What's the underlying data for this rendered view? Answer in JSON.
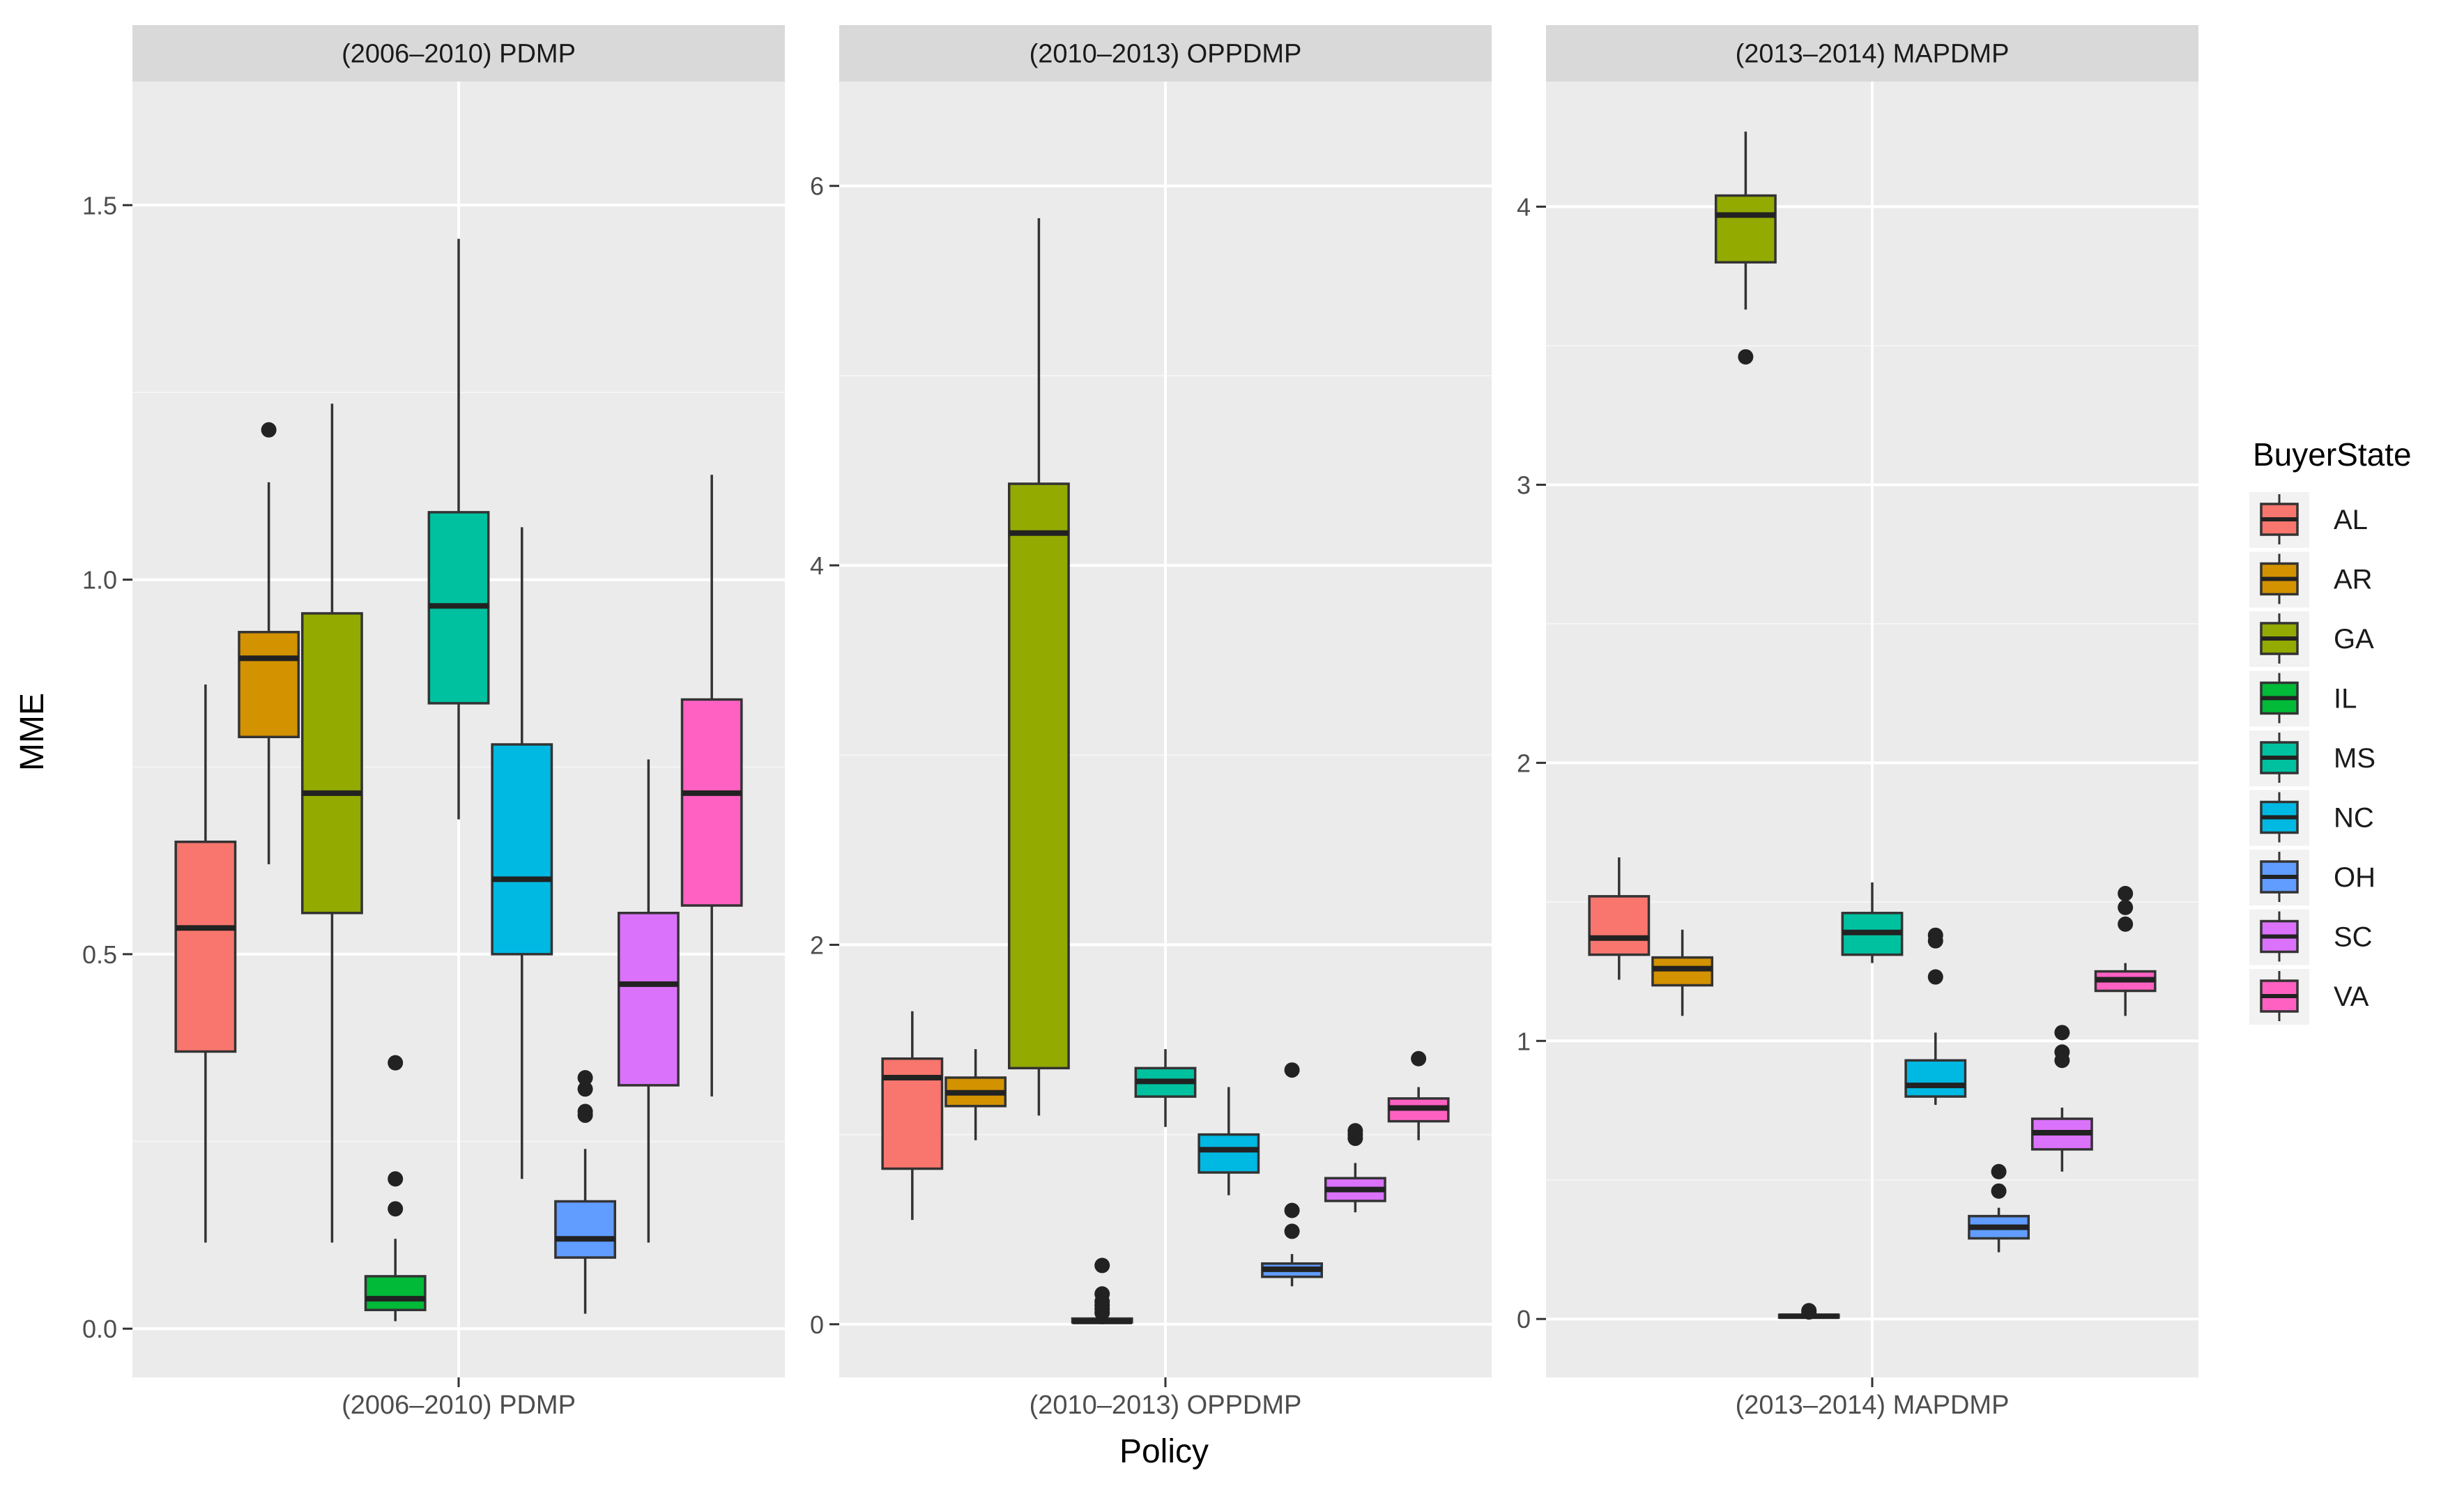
{
  "chart_data": {
    "type": "boxplot",
    "ylabel": "MME",
    "xlabel": "Policy",
    "legend": {
      "title": "BuyerState",
      "placement": "right",
      "entries": [
        "AL",
        "AR",
        "GA",
        "IL",
        "MS",
        "NC",
        "OH",
        "SC",
        "VA"
      ]
    },
    "colors": {
      "AL": "#F8766D",
      "AR": "#D39200",
      "GA": "#93AA00",
      "IL": "#00BA38",
      "MS": "#00C19F",
      "NC": "#00B9E3",
      "OH": "#619CFF",
      "SC": "#DB72FB",
      "VA": "#FF61C3"
    },
    "panels": [
      {
        "strip": "(2006–2010) PDMP",
        "x_tick": "(2006–2010) PDMP",
        "ylim": [
          -0.065,
          1.665
        ],
        "y_ticks": [
          "0.0",
          "0.5",
          "1.0",
          "1.5"
        ],
        "y_tick_values": [
          0,
          0.5,
          1.0,
          1.5
        ],
        "y_minor": [
          0.25,
          0.75,
          1.25
        ],
        "boxes": [
          {
            "state": "AL",
            "lw": 0.115,
            "q1": 0.37,
            "med": 0.535,
            "q3": 0.65,
            "uw": 0.86,
            "out": []
          },
          {
            "state": "AR",
            "lw": 0.62,
            "q1": 0.79,
            "med": 0.895,
            "q3": 0.93,
            "uw": 1.13,
            "out": [
              1.2
            ]
          },
          {
            "state": "GA",
            "lw": 0.115,
            "q1": 0.555,
            "med": 0.715,
            "q3": 0.955,
            "uw": 1.235,
            "out": []
          },
          {
            "state": "IL",
            "lw": 0.01,
            "q1": 0.025,
            "med": 0.04,
            "q3": 0.07,
            "uw": 0.12,
            "out": [
              0.16,
              0.2,
              0.355
            ]
          },
          {
            "state": "MS",
            "lw": 0.68,
            "q1": 0.835,
            "med": 0.965,
            "q3": 1.09,
            "uw": 1.455,
            "out": []
          },
          {
            "state": "NC",
            "lw": 0.2,
            "q1": 0.5,
            "med": 0.6,
            "q3": 0.78,
            "uw": 1.07,
            "out": []
          },
          {
            "state": "OH",
            "lw": 0.02,
            "q1": 0.095,
            "med": 0.12,
            "q3": 0.17,
            "uw": 0.24,
            "out": [
              0.285,
              0.29,
              0.32,
              0.335
            ]
          },
          {
            "state": "SC",
            "lw": 0.115,
            "q1": 0.325,
            "med": 0.46,
            "q3": 0.555,
            "uw": 0.76,
            "out": []
          },
          {
            "state": "VA",
            "lw": 0.31,
            "q1": 0.565,
            "med": 0.715,
            "q3": 0.84,
            "uw": 1.14,
            "out": []
          }
        ]
      },
      {
        "strip": "(2010–2013) OPPDMP",
        "x_tick": "(2010–2013) OPPDMP",
        "ylim": [
          -0.28,
          6.55
        ],
        "y_ticks": [
          "0",
          "2",
          "4",
          "6"
        ],
        "y_tick_values": [
          0,
          2,
          4,
          6
        ],
        "y_minor": [
          1,
          3,
          5
        ],
        "boxes": [
          {
            "state": "AL",
            "lw": 0.55,
            "q1": 0.82,
            "med": 1.3,
            "q3": 1.4,
            "uw": 1.65,
            "out": []
          },
          {
            "state": "AR",
            "lw": 0.97,
            "q1": 1.15,
            "med": 1.22,
            "q3": 1.3,
            "uw": 1.45,
            "out": []
          },
          {
            "state": "GA",
            "lw": 1.1,
            "q1": 1.35,
            "med": 4.17,
            "q3": 4.43,
            "uw": 5.83,
            "out": []
          },
          {
            "state": "IL",
            "lw": 0.0,
            "q1": 0.01,
            "med": 0.015,
            "q3": 0.03,
            "uw": 0.04,
            "out": [
              0.06,
              0.08,
              0.1,
              0.12,
              0.16,
              0.31
            ]
          },
          {
            "state": "MS",
            "lw": 1.04,
            "q1": 1.2,
            "med": 1.28,
            "q3": 1.35,
            "uw": 1.45,
            "out": []
          },
          {
            "state": "NC",
            "lw": 0.68,
            "q1": 0.8,
            "med": 0.92,
            "q3": 1.0,
            "uw": 1.25,
            "out": []
          },
          {
            "state": "OH",
            "lw": 0.2,
            "q1": 0.25,
            "med": 0.29,
            "q3": 0.32,
            "uw": 0.37,
            "out": [
              0.49,
              0.6,
              1.34
            ]
          },
          {
            "state": "SC",
            "lw": 0.59,
            "q1": 0.65,
            "med": 0.71,
            "q3": 0.77,
            "uw": 0.85,
            "out": [
              0.98,
              1.0,
              1.02
            ]
          },
          {
            "state": "VA",
            "lw": 0.97,
            "q1": 1.07,
            "med": 1.14,
            "q3": 1.19,
            "uw": 1.25,
            "out": [
              1.4
            ]
          }
        ]
      },
      {
        "strip": "(2013–2014) MAPDMP",
        "x_tick": "(2013–2014) MAPDMP",
        "ylim": [
          -0.21,
          4.45
        ],
        "y_ticks": [
          "0",
          "1",
          "2",
          "3",
          "4"
        ],
        "y_tick_values": [
          0,
          1,
          2,
          3,
          4
        ],
        "y_minor": [
          0.5,
          1.5,
          2.5,
          3.5
        ],
        "boxes": [
          {
            "state": "AL",
            "lw": 1.22,
            "q1": 1.31,
            "med": 1.37,
            "q3": 1.52,
            "uw": 1.66,
            "out": []
          },
          {
            "state": "AR",
            "lw": 1.09,
            "q1": 1.2,
            "med": 1.26,
            "q3": 1.3,
            "uw": 1.4,
            "out": []
          },
          {
            "state": "GA",
            "lw": 3.63,
            "q1": 3.8,
            "med": 3.97,
            "q3": 4.04,
            "uw": 4.27,
            "out": [
              3.46
            ]
          },
          {
            "state": "IL",
            "lw": 0.0,
            "q1": 0.005,
            "med": 0.01,
            "q3": 0.015,
            "uw": 0.02,
            "out": [
              0.025,
              0.03
            ]
          },
          {
            "state": "MS",
            "lw": 1.28,
            "q1": 1.31,
            "med": 1.39,
            "q3": 1.46,
            "uw": 1.57,
            "out": []
          },
          {
            "state": "NC",
            "lw": 0.77,
            "q1": 0.8,
            "med": 0.84,
            "q3": 0.93,
            "uw": 1.03,
            "out": [
              1.23,
              1.36,
              1.38
            ]
          },
          {
            "state": "OH",
            "lw": 0.24,
            "q1": 0.29,
            "med": 0.33,
            "q3": 0.37,
            "uw": 0.4,
            "out": [
              0.46,
              0.53
            ]
          },
          {
            "state": "SC",
            "lw": 0.53,
            "q1": 0.61,
            "med": 0.67,
            "q3": 0.72,
            "uw": 0.76,
            "out": [
              0.93,
              0.96,
              1.03
            ]
          },
          {
            "state": "VA",
            "lw": 1.09,
            "q1": 1.18,
            "med": 1.22,
            "q3": 1.25,
            "uw": 1.28,
            "out": [
              1.42,
              1.48,
              1.53
            ]
          }
        ]
      }
    ]
  }
}
